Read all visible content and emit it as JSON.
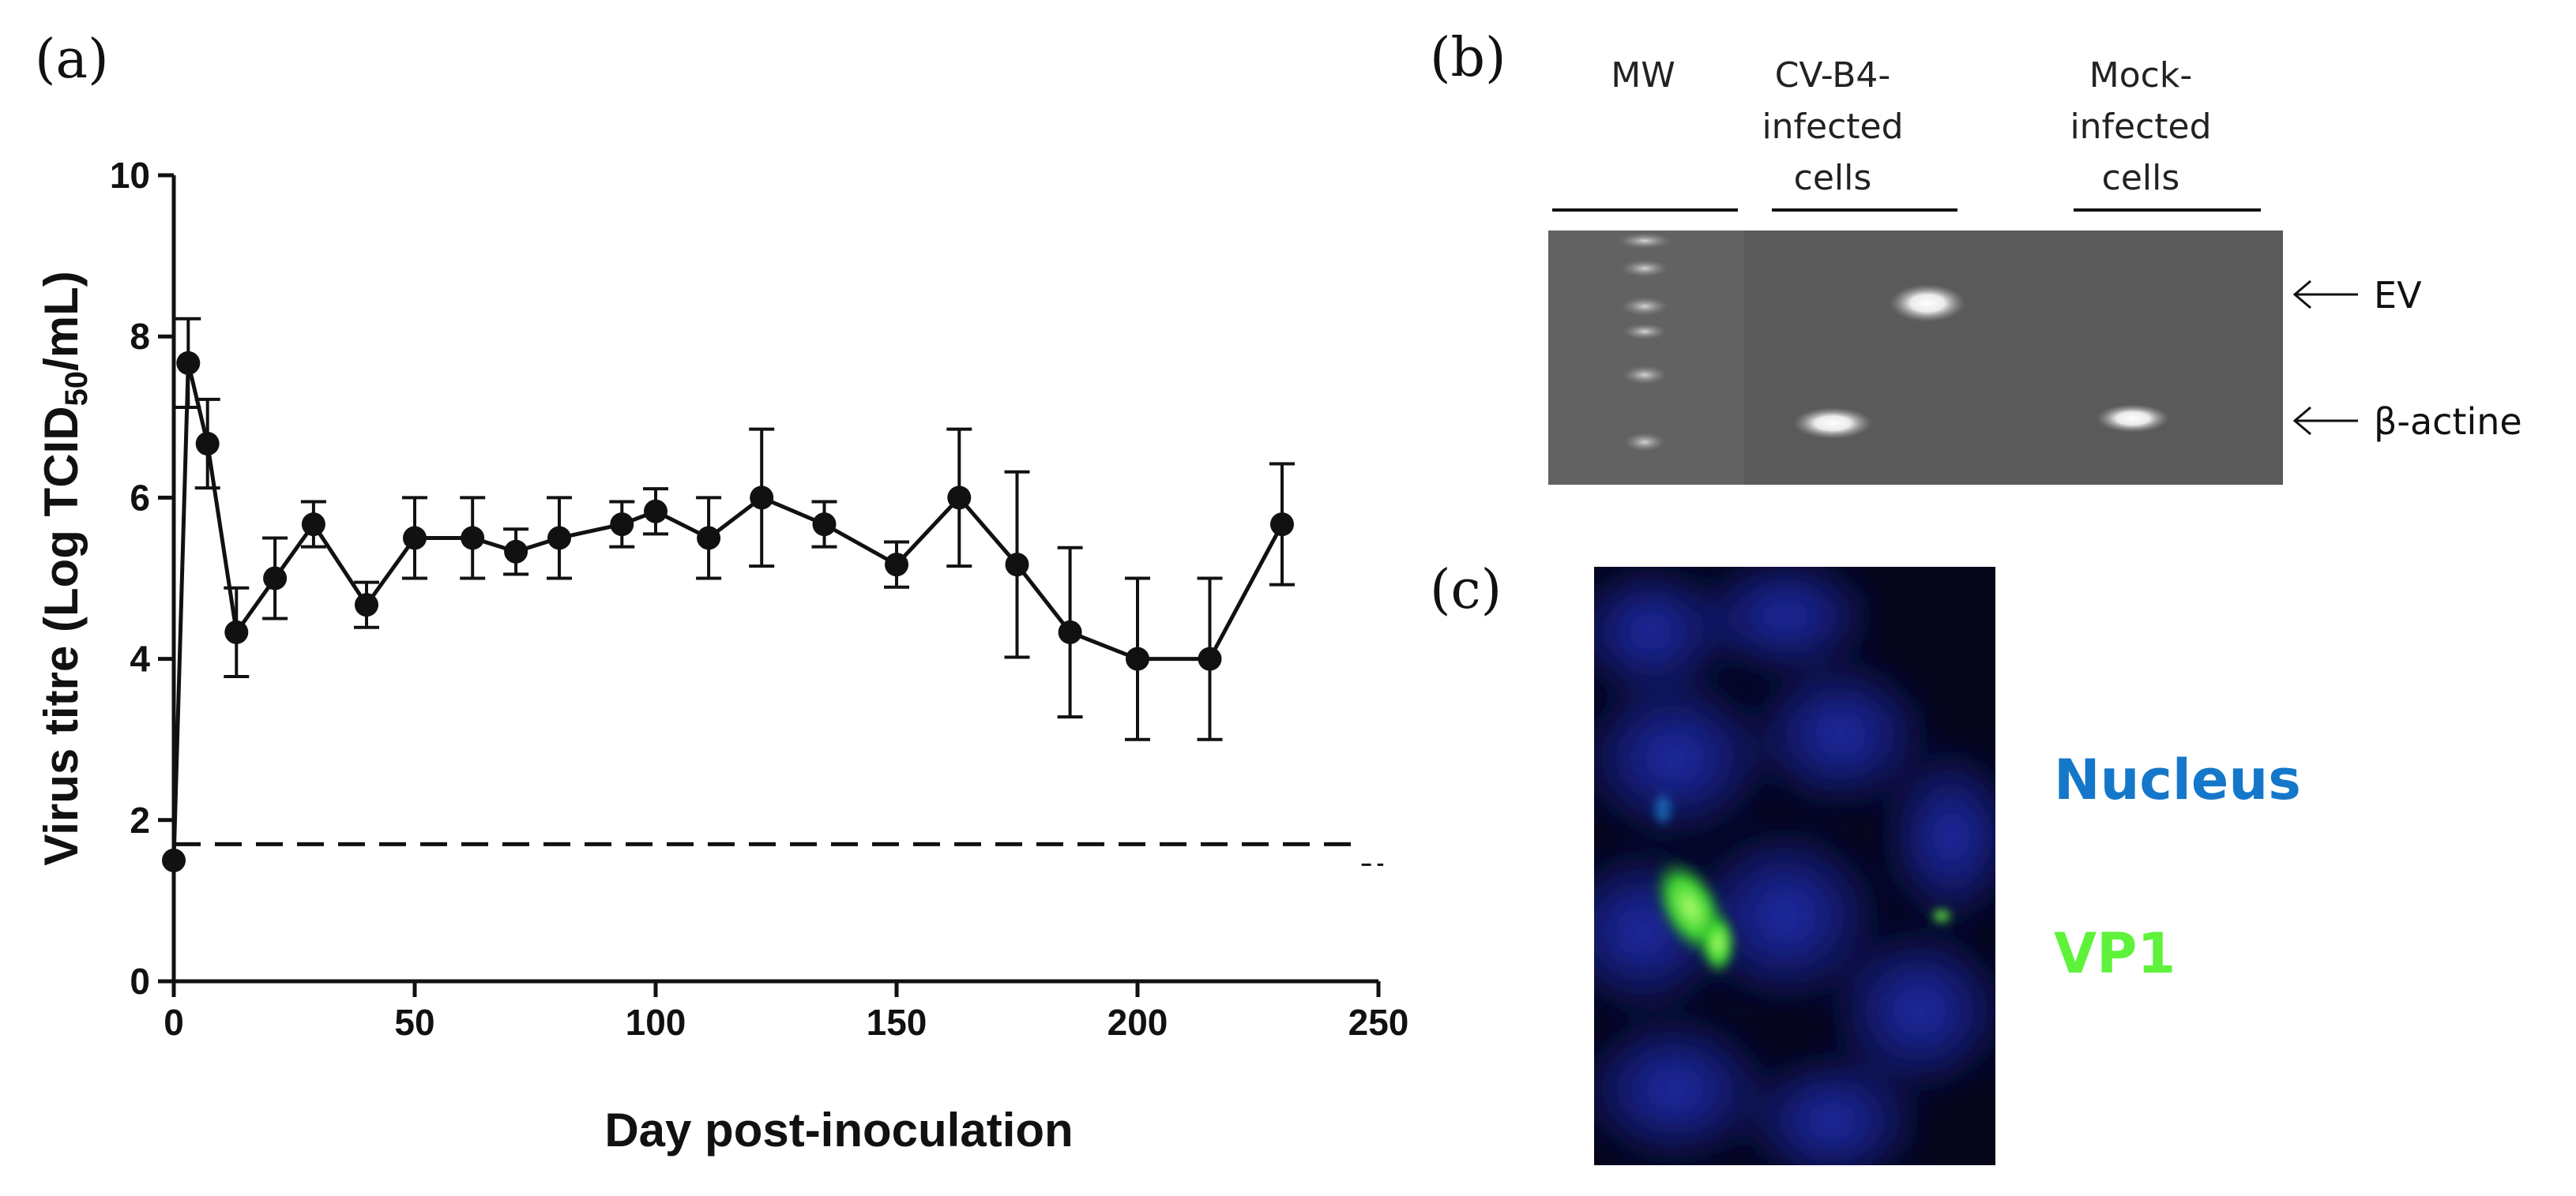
{
  "panels": {
    "a": {
      "letter": "(a)"
    },
    "b": {
      "letter": "(b)"
    },
    "c": {
      "letter": "(c)"
    }
  },
  "chart_data": {
    "type": "line",
    "title": "",
    "xlabel": "Day post-inoculation",
    "ylabel_main": "Virus titre (Log TCID",
    "ylabel_sub": "50",
    "ylabel_tail": "/mL)",
    "xlim": [
      0,
      250
    ],
    "ylim": [
      0,
      10
    ],
    "xticks": [
      0,
      50,
      100,
      150,
      200,
      250
    ],
    "yticks": [
      0,
      2,
      4,
      6,
      8,
      10
    ],
    "grid": false,
    "detection_limit": 1.7,
    "detection_limit_style": "dashed",
    "series": [
      {
        "name": "Virus titre",
        "x": [
          0,
          3,
          7,
          13,
          21,
          29,
          40,
          50,
          62,
          71,
          80,
          93,
          100,
          111,
          122,
          135,
          150,
          163,
          175,
          186,
          200,
          215,
          230
        ],
        "y": [
          1.5,
          7.67,
          6.67,
          4.33,
          5.0,
          5.67,
          4.67,
          5.5,
          5.5,
          5.33,
          5.5,
          5.67,
          5.83,
          5.5,
          6.0,
          5.67,
          5.17,
          6.0,
          5.17,
          4.33,
          4.0,
          4.0,
          5.67
        ],
        "err": [
          0,
          0.55,
          0.55,
          0.55,
          0.5,
          0.28,
          0.28,
          0.5,
          0.5,
          0.28,
          0.5,
          0.28,
          0.28,
          0.5,
          0.85,
          0.28,
          0.28,
          0.85,
          1.15,
          1.05,
          1.0,
          1.0,
          0.75
        ]
      }
    ]
  },
  "gel": {
    "lanes": {
      "mw": "MW",
      "cvb4_line1": "CV-B4-",
      "cvb4_line2": "infected",
      "cvb4_line3": "cells",
      "mock_line1": "Mock-",
      "mock_line2": "infected",
      "mock_line3": "cells"
    },
    "markers": {
      "ev": "EV",
      "actine": "β-actine"
    }
  },
  "fluorescence": {
    "nucleus_label": "Nucleus",
    "vp1_label": "VP1",
    "nucleus_color": "#1577c9",
    "vp1_color": "#5ef23a"
  }
}
